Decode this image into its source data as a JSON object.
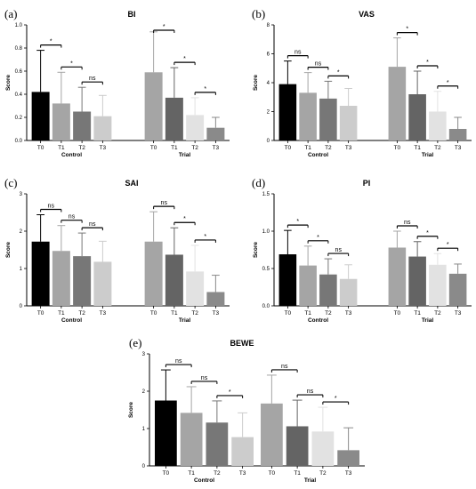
{
  "chart_data": [
    {
      "panel": "(a)",
      "title": "BI",
      "type": "bar",
      "ylabel": "Score",
      "ylim": [
        0,
        1.0
      ],
      "yticks": [
        "0.0",
        "0.2",
        "0.4",
        "0.6",
        "0.8",
        "1.0"
      ],
      "categories": [
        "T0",
        "T1",
        "T2",
        "T3"
      ],
      "groups": [
        {
          "name": "Control",
          "values": [
            0.42,
            0.32,
            0.25,
            0.21
          ],
          "errors": [
            0.36,
            0.27,
            0.21,
            0.18
          ]
        },
        {
          "name": "Trial",
          "values": [
            0.59,
            0.37,
            0.22,
            0.11
          ],
          "errors": [
            0.35,
            0.26,
            0.15,
            0.09
          ]
        }
      ],
      "significance": [
        {
          "group": 0,
          "from": 0,
          "to": 1,
          "label": "*"
        },
        {
          "group": 0,
          "from": 1,
          "to": 2,
          "label": "*"
        },
        {
          "group": 0,
          "from": 2,
          "to": 3,
          "label": "ns"
        },
        {
          "group": 1,
          "from": 0,
          "to": 1,
          "label": "*"
        },
        {
          "group": 1,
          "from": 1,
          "to": 2,
          "label": "*"
        },
        {
          "group": 1,
          "from": 2,
          "to": 3,
          "label": "*"
        }
      ]
    },
    {
      "panel": "(b)",
      "title": "VAS",
      "type": "bar",
      "ylabel": "Score",
      "ylim": [
        0,
        8
      ],
      "yticks": [
        "0",
        "2",
        "4",
        "6",
        "8"
      ],
      "categories": [
        "T0",
        "T1",
        "T2",
        "T3"
      ],
      "groups": [
        {
          "name": "Control",
          "values": [
            3.9,
            3.3,
            2.9,
            2.4
          ],
          "errors": [
            1.6,
            1.4,
            1.2,
            1.2
          ]
        },
        {
          "name": "Trial",
          "values": [
            5.1,
            3.2,
            2.0,
            0.8
          ],
          "errors": [
            2.0,
            1.6,
            1.4,
            0.8
          ]
        }
      ],
      "significance": [
        {
          "group": 0,
          "from": 0,
          "to": 1,
          "label": "ns"
        },
        {
          "group": 0,
          "from": 1,
          "to": 2,
          "label": "ns"
        },
        {
          "group": 0,
          "from": 2,
          "to": 3,
          "label": "*"
        },
        {
          "group": 1,
          "from": 0,
          "to": 1,
          "label": "*"
        },
        {
          "group": 1,
          "from": 1,
          "to": 2,
          "label": "*"
        },
        {
          "group": 1,
          "from": 2,
          "to": 3,
          "label": "*"
        }
      ]
    },
    {
      "panel": "(c)",
      "title": "SAI",
      "type": "bar",
      "ylabel": "Score",
      "ylim": [
        0,
        3
      ],
      "yticks": [
        "0",
        "1",
        "2",
        "3"
      ],
      "categories": [
        "T0",
        "T1",
        "T2",
        "T3"
      ],
      "groups": [
        {
          "name": "Control",
          "values": [
            1.72,
            1.47,
            1.33,
            1.18
          ],
          "errors": [
            0.72,
            0.68,
            0.62,
            0.55
          ]
        },
        {
          "name": "Trial",
          "values": [
            1.72,
            1.37,
            0.92,
            0.37
          ],
          "errors": [
            0.8,
            0.72,
            0.7,
            0.45
          ]
        }
      ],
      "significance": [
        {
          "group": 0,
          "from": 0,
          "to": 1,
          "label": "ns"
        },
        {
          "group": 0,
          "from": 1,
          "to": 2,
          "label": "ns"
        },
        {
          "group": 0,
          "from": 2,
          "to": 3,
          "label": "ns"
        },
        {
          "group": 1,
          "from": 0,
          "to": 1,
          "label": "ns"
        },
        {
          "group": 1,
          "from": 1,
          "to": 2,
          "label": "*"
        },
        {
          "group": 1,
          "from": 2,
          "to": 3,
          "label": "*"
        }
      ]
    },
    {
      "panel": "(d)",
      "title": "PI",
      "type": "bar",
      "ylabel": "Score",
      "ylim": [
        0,
        1.5
      ],
      "yticks": [
        "0.0",
        "0.5",
        "1.0",
        "1.5"
      ],
      "categories": [
        "T0",
        "T1",
        "T2",
        "T3"
      ],
      "groups": [
        {
          "name": "Control",
          "values": [
            0.69,
            0.54,
            0.42,
            0.36
          ],
          "errors": [
            0.32,
            0.26,
            0.21,
            0.19
          ]
        },
        {
          "name": "Trial",
          "values": [
            0.78,
            0.66,
            0.55,
            0.43
          ],
          "errors": [
            0.22,
            0.2,
            0.15,
            0.13
          ]
        }
      ],
      "significance": [
        {
          "group": 0,
          "from": 0,
          "to": 1,
          "label": "*"
        },
        {
          "group": 0,
          "from": 1,
          "to": 2,
          "label": "*"
        },
        {
          "group": 0,
          "from": 2,
          "to": 3,
          "label": "ns"
        },
        {
          "group": 1,
          "from": 0,
          "to": 1,
          "label": "ns"
        },
        {
          "group": 1,
          "from": 1,
          "to": 2,
          "label": "*"
        },
        {
          "group": 1,
          "from": 2,
          "to": 3,
          "label": "*"
        }
      ]
    },
    {
      "panel": "(e)",
      "title": "BEWE",
      "type": "bar",
      "ylabel": "Score",
      "ylim": [
        0,
        3
      ],
      "yticks": [
        "0",
        "1",
        "2",
        "3"
      ],
      "categories": [
        "T0",
        "T1",
        "T2",
        "T3"
      ],
      "groups": [
        {
          "name": "Control",
          "values": [
            1.75,
            1.42,
            1.16,
            0.77
          ],
          "errors": [
            0.82,
            0.7,
            0.58,
            0.65
          ]
        },
        {
          "name": "Trial",
          "values": [
            1.67,
            1.06,
            0.92,
            0.42
          ],
          "errors": [
            0.76,
            0.7,
            0.65,
            0.6
          ]
        }
      ],
      "significance": [
        {
          "group": 0,
          "from": 0,
          "to": 1,
          "label": "ns"
        },
        {
          "group": 0,
          "from": 1,
          "to": 2,
          "label": "ns"
        },
        {
          "group": 0,
          "from": 2,
          "to": 3,
          "label": "*"
        },
        {
          "group": 1,
          "from": 0,
          "to": 1,
          "label": "ns"
        },
        {
          "group": 1,
          "from": 1,
          "to": 2,
          "label": "ns"
        },
        {
          "group": 1,
          "from": 2,
          "to": 3,
          "label": "*"
        }
      ]
    }
  ],
  "colors": {
    "control": [
      "#000000",
      "#a5a5a5",
      "#777777",
      "#cccccc"
    ],
    "trial_standard": [
      "#a5a5a5",
      "#646464",
      "#e2e2e2",
      "#8a8a8a"
    ],
    "trial_bewe": [
      "#a5a5a5",
      "#646464",
      "#e2e2e2",
      "#8a8a8a"
    ]
  }
}
